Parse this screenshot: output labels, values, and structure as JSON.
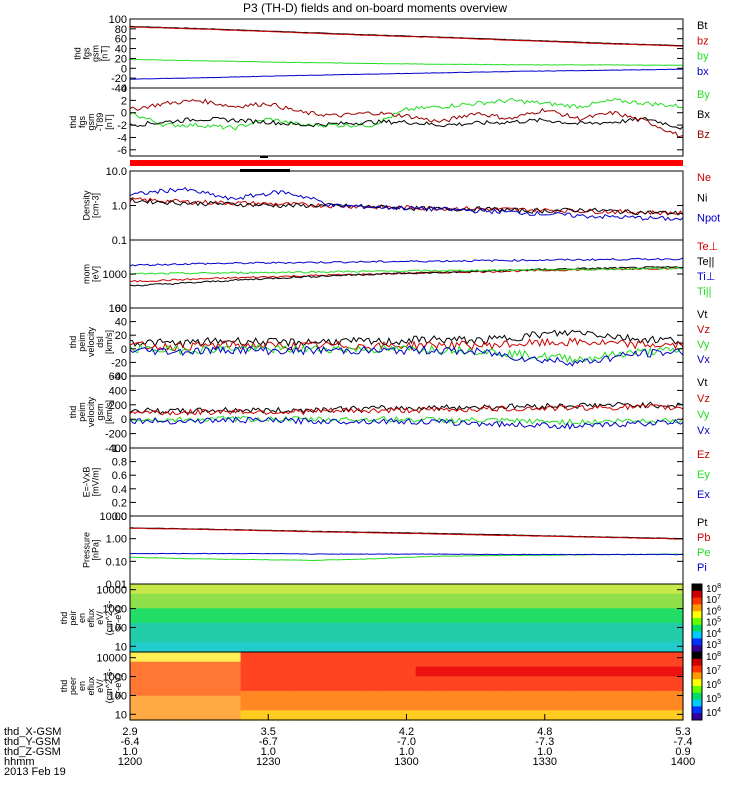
{
  "title": "P3 (TH-D) fields and on-board moments overview",
  "date": "2013 Feb 19",
  "colors": {
    "black": "#000000",
    "red": "#cc0000",
    "green": "#22dd22",
    "blue": "#0000cc",
    "darkred": "#990000"
  },
  "chart_data": [
    {
      "type": "line",
      "name": "fgs",
      "ylabel": [
        "thd",
        "fgs",
        "gsm",
        "[nT]"
      ],
      "ylim": [
        -40,
        100
      ],
      "yticks": [
        100,
        80,
        60,
        40,
        20,
        0,
        -20,
        -40
      ],
      "legend": [
        "Bt",
        "bz",
        "by",
        "bx"
      ],
      "series": [
        {
          "name": "Bt",
          "color": "#000000",
          "values": [
            85,
            80,
            74,
            68,
            63,
            57,
            51,
            46
          ]
        },
        {
          "name": "bz",
          "color": "#cc0000",
          "values": [
            84,
            79,
            73,
            67,
            62,
            56,
            50,
            45
          ]
        },
        {
          "name": "by",
          "color": "#22dd22",
          "values": [
            18,
            15,
            12,
            10,
            8,
            7,
            7,
            6
          ]
        },
        {
          "name": "bx",
          "color": "#0000cc",
          "values": [
            -22,
            -19,
            -15,
            -12,
            -9,
            -6,
            -4,
            -2
          ]
        }
      ]
    },
    {
      "type": "line",
      "name": "fgs-dtrnd",
      "ylabel": [
        "thd",
        "fgs",
        "gsm",
        "-T89",
        "[nT]"
      ],
      "ylim": [
        -7,
        4
      ],
      "yticks": [
        4,
        2,
        0,
        -2,
        -4,
        -6
      ],
      "legend": [
        "By",
        "Bx",
        "Bz"
      ],
      "series": [
        {
          "name": "By",
          "color": "#22dd22",
          "values": [
            0,
            -2,
            -2,
            -2.5,
            -1,
            -2,
            -2,
            -2,
            0.5,
            1,
            1.5,
            2,
            1.5,
            1,
            2,
            1.5,
            1
          ]
        },
        {
          "name": "Bx",
          "color": "#000000",
          "values": [
            -2,
            -1.5,
            -1,
            -1.2,
            -1.5,
            -2,
            -1.8,
            -1.5,
            -1.5,
            -2,
            -1.7,
            -1.5,
            -1.2,
            -1.8,
            -1.5,
            -1,
            -2.5
          ]
        },
        {
          "name": "Bz",
          "color": "#990000",
          "values": [
            0.5,
            1.5,
            2,
            1,
            1.5,
            0,
            -0.5,
            0,
            -0.5,
            -1.5,
            0,
            -1,
            0.5,
            -1,
            0,
            -1.5,
            -4
          ]
        }
      ]
    },
    {
      "type": "line",
      "name": "density",
      "ylabel": [
        "Density",
        "[cm-3]"
      ],
      "yscale": "log",
      "ylim": [
        0.1,
        10
      ],
      "yticks": [
        "10.0",
        "1.0",
        "0.1"
      ],
      "legend": [
        "Ne",
        "Ni",
        "Npot"
      ],
      "series": [
        {
          "name": "Ne",
          "color": "#cc0000",
          "values": [
            1.5,
            1.3,
            1.2,
            1.1,
            1.0,
            0.9,
            0.85,
            0.8,
            0.75,
            0.7,
            0.65,
            0.6
          ]
        },
        {
          "name": "Ni",
          "color": "#000000",
          "values": [
            1.4,
            1.2,
            1.1,
            1.0,
            1.0,
            0.9,
            0.8,
            0.8,
            0.7,
            0.75,
            0.65,
            0.6
          ]
        },
        {
          "name": "Npot",
          "color": "#0000cc",
          "values": [
            2.0,
            3.0,
            1.5,
            2.5,
            1.0,
            0.9,
            0.8,
            0.7,
            0.6,
            0.5,
            0.45,
            0.4
          ]
        }
      ]
    },
    {
      "type": "line",
      "name": "temperature",
      "ylabel": [
        "mom",
        "[eV]"
      ],
      "yscale": "log",
      "ylim": [
        100,
        10000
      ],
      "yticks": [
        "1000",
        "100"
      ],
      "legend": [
        "Te⊥",
        "Te||",
        "Ti⊥",
        "Ti||"
      ],
      "series": [
        {
          "name": "Te⊥",
          "color": "#cc0000",
          "values": [
            600,
            700,
            800,
            900,
            1000,
            1100,
            1200,
            1300,
            1400,
            1500
          ]
        },
        {
          "name": "Te||",
          "color": "#000000",
          "values": [
            450,
            550,
            700,
            850,
            1000,
            1100,
            1250,
            1400,
            1500,
            1600
          ]
        },
        {
          "name": "Ti⊥",
          "color": "#0000cc",
          "values": [
            1800,
            2000,
            2100,
            2200,
            2300,
            2400,
            2500,
            2600,
            2700,
            2800
          ]
        },
        {
          "name": "Ti||",
          "color": "#22dd22",
          "values": [
            1000,
            1050,
            1100,
            1150,
            1200,
            1250,
            1300,
            1350,
            1400,
            1500
          ]
        }
      ]
    },
    {
      "type": "line",
      "name": "peim-velocity-dsl",
      "ylabel": [
        "thd",
        "peim",
        "velocity",
        "dsl",
        "[km/s]"
      ],
      "ylim": [
        -40,
        60
      ],
      "yticks": [
        60,
        40,
        20,
        0,
        -20,
        -40
      ],
      "legend": [
        "Vt",
        "Vz",
        "Vy",
        "Vx"
      ],
      "series": [
        {
          "name": "Vt",
          "color": "#000000",
          "values": [
            10,
            8,
            12,
            9,
            11,
            10,
            14,
            12,
            20,
            25,
            15,
            12
          ]
        },
        {
          "name": "Vz",
          "color": "#cc0000",
          "values": [
            5,
            3,
            6,
            4,
            5,
            4,
            6,
            5,
            8,
            10,
            6,
            5
          ]
        },
        {
          "name": "Vy",
          "color": "#22dd22",
          "values": [
            0,
            -2,
            1,
            -1,
            0,
            -1,
            0,
            -3,
            -10,
            -15,
            -5,
            -2
          ]
        },
        {
          "name": "Vx",
          "color": "#0000cc",
          "values": [
            -2,
            -4,
            -1,
            -3,
            -2,
            -3,
            -2,
            -5,
            -15,
            -20,
            -8,
            -4
          ]
        }
      ]
    },
    {
      "type": "line",
      "name": "peim-velocity-gsm",
      "ylabel": [
        "thd",
        "peim",
        "velocity",
        "gsm",
        "[km/s]"
      ],
      "ylim": [
        -400,
        600
      ],
      "yticks": [
        600,
        400,
        200,
        0,
        -200,
        -400
      ],
      "legend": [
        "Vt",
        "Vz",
        "Vy",
        "Vx"
      ],
      "series": [
        {
          "name": "Vt",
          "color": "#000000",
          "values": [
            120,
            110,
            130,
            120,
            140,
            150,
            160,
            170,
            180,
            190,
            200,
            190
          ]
        },
        {
          "name": "Vz",
          "color": "#cc0000",
          "values": [
            100,
            90,
            110,
            100,
            115,
            120,
            130,
            140,
            150,
            160,
            170,
            160
          ]
        },
        {
          "name": "Vy",
          "color": "#22dd22",
          "values": [
            0,
            -10,
            5,
            0,
            -5,
            0,
            -10,
            -20,
            -30,
            -40,
            -20,
            -10
          ]
        },
        {
          "name": "Vx",
          "color": "#0000cc",
          "values": [
            -20,
            -30,
            -10,
            -20,
            -30,
            -25,
            -40,
            -60,
            -80,
            -100,
            -60,
            -40
          ]
        }
      ]
    },
    {
      "type": "line",
      "name": "e-vxb",
      "ylabel": [
        "E=-VxB",
        "[mV/m]"
      ],
      "ylim": [
        0,
        1
      ],
      "yticks": [
        "1.0",
        "0.8",
        "0.6",
        "0.4",
        "0.2",
        "0.0"
      ],
      "legend": [
        "Ez",
        "Ey",
        "Ex"
      ],
      "series": []
    },
    {
      "type": "line",
      "name": "pressure",
      "ylabel": [
        "Pressure",
        "[nPa]"
      ],
      "yscale": "log",
      "ylim": [
        0.01,
        10
      ],
      "yticks": [
        "10.00",
        "1.00",
        "0.10",
        "0.01"
      ],
      "legend": [
        "Pt",
        "Pb",
        "Pe",
        "Pi"
      ],
      "series": [
        {
          "name": "Pt",
          "color": "#000000",
          "values": [
            3.0,
            2.7,
            2.4,
            2.1,
            1.9,
            1.7,
            1.5,
            1.3,
            1.15,
            1.0
          ]
        },
        {
          "name": "Pb",
          "color": "#cc0000",
          "values": [
            2.9,
            2.6,
            2.3,
            2.0,
            1.8,
            1.6,
            1.4,
            1.25,
            1.1,
            0.95
          ]
        },
        {
          "name": "Pe",
          "color": "#22dd22",
          "values": [
            0.15,
            0.13,
            0.12,
            0.11,
            0.13,
            0.17,
            0.18,
            0.19,
            0.2,
            0.21
          ]
        },
        {
          "name": "Pi",
          "color": "#0000cc",
          "values": [
            0.22,
            0.22,
            0.22,
            0.21,
            0.21,
            0.21,
            0.2,
            0.2,
            0.2,
            0.2
          ]
        }
      ]
    },
    {
      "type": "heatmap",
      "name": "peir-en-eflux",
      "ylabel": [
        "thd",
        "peir",
        "en",
        "eflux",
        "eV/",
        "(cm^2-s-",
        "sr-eV)"
      ],
      "yscale": "log",
      "ylim": [
        5,
        20000
      ],
      "yticks": [
        "10000",
        "1000",
        "100",
        "10"
      ],
      "colorbar": {
        "labels": [
          "10^8",
          "10^7",
          "10^6",
          "10^5",
          "10^4",
          "10^3"
        ]
      }
    },
    {
      "type": "heatmap",
      "name": "peer-en-eflux",
      "ylabel": [
        "thd",
        "peer",
        "en",
        "eflux",
        "eV/",
        "(cm^2-s-",
        "sr-eV)"
      ],
      "yscale": "log",
      "ylim": [
        5,
        20000
      ],
      "yticks": [
        "10000",
        "1000",
        "100",
        "10"
      ],
      "colorbar": {
        "labels": [
          "10^8",
          "10^7",
          "10^6",
          "10^5",
          "10^4"
        ]
      }
    }
  ],
  "x_axis": {
    "rows": [
      {
        "label": "thd_X-GSM",
        "values": [
          "2.9",
          "3.5",
          "4.2",
          "4.8",
          "5.3"
        ]
      },
      {
        "label": "thd_Y-GSM",
        "values": [
          "-6.4",
          "-6.7",
          "-7.0",
          "-7.3",
          "-7.4"
        ]
      },
      {
        "label": "thd_Z-GSM",
        "values": [
          "1.0",
          "1.0",
          "1.0",
          "1.0",
          "0.9"
        ]
      },
      {
        "label": "hhmm",
        "values": [
          "1200",
          "1230",
          "1300",
          "1330",
          "1400"
        ]
      }
    ]
  }
}
